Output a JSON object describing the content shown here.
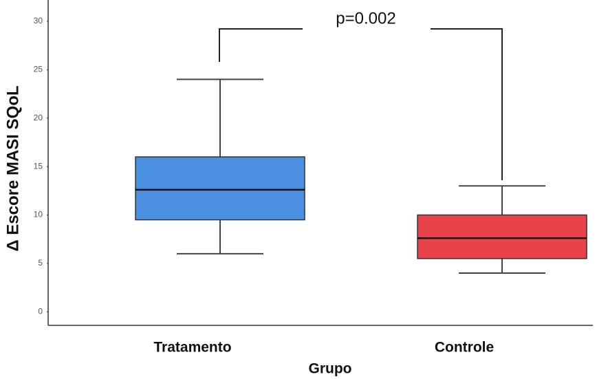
{
  "chart_data": {
    "type": "boxplot",
    "categories": [
      "Tratamento",
      "Controle"
    ],
    "boxes": [
      {
        "whisker_low": 6,
        "q1": 9.5,
        "median": 12.6,
        "q3": 16,
        "whisker_high": 24
      },
      {
        "whisker_low": 4,
        "q1": 5.5,
        "median": 7.6,
        "q3": 10,
        "whisker_high": 13
      }
    ],
    "colors": [
      "#4a8fe0",
      "#e8424b"
    ],
    "xlabel": "Grupo",
    "ylabel": "Δ Escore MASI SQoL",
    "annotation": "p=0.002",
    "ylim": [
      -1.4,
      32.2
    ],
    "yticks": [
      0,
      5,
      10,
      15,
      20,
      25,
      30
    ],
    "grid": false
  }
}
